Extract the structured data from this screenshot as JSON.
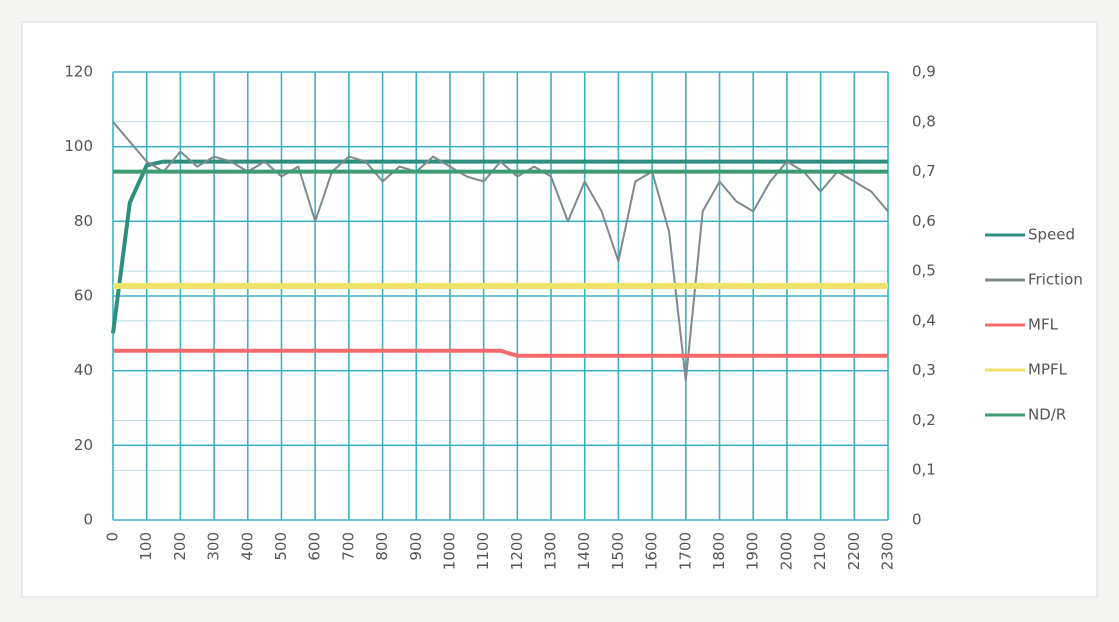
{
  "chart_data": {
    "type": "line",
    "x": [
      0,
      50,
      100,
      150,
      200,
      250,
      300,
      350,
      400,
      450,
      500,
      550,
      600,
      650,
      700,
      750,
      800,
      850,
      900,
      950,
      1000,
      1050,
      1100,
      1150,
      1200,
      1250,
      1300,
      1350,
      1400,
      1450,
      1500,
      1550,
      1600,
      1650,
      1700,
      1750,
      1800,
      1850,
      1900,
      1950,
      2000,
      2050,
      2100,
      2150,
      2200,
      2250,
      2300
    ],
    "series": [
      {
        "name": "Speed",
        "color": "#2f8f7e",
        "axis": "y",
        "values": [
          50,
          85,
          95,
          96,
          96,
          96,
          96,
          96,
          96,
          96,
          96,
          96,
          96,
          96,
          96,
          96,
          96,
          96,
          96,
          96,
          96,
          96,
          96,
          96,
          96,
          96,
          96,
          96,
          96,
          96,
          96,
          96,
          96,
          96,
          96,
          96,
          96,
          96,
          96,
          96,
          96,
          96,
          96,
          96,
          96,
          96,
          96
        ]
      },
      {
        "name": "Friction",
        "color": "#7f8a8c",
        "axis": "y2",
        "values": [
          0.8,
          0.76,
          0.72,
          0.7,
          0.74,
          0.71,
          0.73,
          0.72,
          0.7,
          0.72,
          0.69,
          0.71,
          0.6,
          0.7,
          0.73,
          0.72,
          0.68,
          0.71,
          0.7,
          0.73,
          0.71,
          0.69,
          0.68,
          0.72,
          0.69,
          0.71,
          0.69,
          0.6,
          0.68,
          0.62,
          0.52,
          0.68,
          0.7,
          0.58,
          0.28,
          0.62,
          0.68,
          0.64,
          0.62,
          0.68,
          0.72,
          0.7,
          0.66,
          0.7,
          0.68,
          0.66,
          0.62
        ]
      },
      {
        "name": "MFL",
        "color": "#f46a6a",
        "axis": "y2",
        "values": [
          0.34,
          0.34,
          0.34,
          0.34,
          0.34,
          0.34,
          0.34,
          0.34,
          0.34,
          0.34,
          0.34,
          0.34,
          0.34,
          0.34,
          0.34,
          0.34,
          0.34,
          0.34,
          0.34,
          0.34,
          0.34,
          0.34,
          0.34,
          0.34,
          0.33,
          0.33,
          0.33,
          0.33,
          0.33,
          0.33,
          0.33,
          0.33,
          0.33,
          0.33,
          0.33,
          0.33,
          0.33,
          0.33,
          0.33,
          0.33,
          0.33,
          0.33,
          0.33,
          0.33,
          0.33,
          0.33,
          0.33
        ]
      },
      {
        "name": "MPFL",
        "color": "#eee36a",
        "axis": "y2",
        "values": [
          0.47,
          0.47,
          0.47,
          0.47,
          0.47,
          0.47,
          0.47,
          0.47,
          0.47,
          0.47,
          0.47,
          0.47,
          0.47,
          0.47,
          0.47,
          0.47,
          0.47,
          0.47,
          0.47,
          0.47,
          0.47,
          0.47,
          0.47,
          0.47,
          0.47,
          0.47,
          0.47,
          0.47,
          0.47,
          0.47,
          0.47,
          0.47,
          0.47,
          0.47,
          0.47,
          0.47,
          0.47,
          0.47,
          0.47,
          0.47,
          0.47,
          0.47,
          0.47,
          0.47,
          0.47,
          0.47,
          0.47
        ]
      },
      {
        "name": "ND/R",
        "color": "#3d9a73",
        "axis": "y2",
        "values": [
          0.7,
          0.7,
          0.7,
          0.7,
          0.7,
          0.7,
          0.7,
          0.7,
          0.7,
          0.7,
          0.7,
          0.7,
          0.7,
          0.7,
          0.7,
          0.7,
          0.7,
          0.7,
          0.7,
          0.7,
          0.7,
          0.7,
          0.7,
          0.7,
          0.7,
          0.7,
          0.7,
          0.7,
          0.7,
          0.7,
          0.7,
          0.7,
          0.7,
          0.7,
          0.7,
          0.7,
          0.7,
          0.7,
          0.7,
          0.7,
          0.7,
          0.7,
          0.7,
          0.7,
          0.7,
          0.7,
          0.7
        ]
      }
    ],
    "xlim": [
      0,
      2300
    ],
    "xticks": [
      0,
      100,
      200,
      300,
      400,
      500,
      600,
      700,
      800,
      900,
      1000,
      1100,
      1200,
      1300,
      1400,
      1500,
      1600,
      1700,
      1800,
      1900,
      2000,
      2100,
      2200,
      2300
    ],
    "ylim": [
      0,
      120
    ],
    "yticks": [
      0,
      20,
      40,
      60,
      80,
      100,
      120
    ],
    "y2lim": [
      0,
      0.9
    ],
    "y2ticks": [
      0,
      {
        "value": 0.1,
        "label": "0,1"
      },
      {
        "value": 0.2,
        "label": "0,2"
      },
      {
        "value": 0.3,
        "label": "0,3"
      },
      {
        "value": 0.4,
        "label": "0,4"
      },
      {
        "value": 0.5,
        "label": "0,5"
      },
      {
        "value": 0.6,
        "label": "0,6"
      },
      {
        "value": 0.7,
        "label": "0,7"
      },
      {
        "value": 0.8,
        "label": "0,8"
      },
      {
        "value": 0.9,
        "label": "0,9"
      }
    ],
    "grid": true,
    "legend": "right"
  }
}
